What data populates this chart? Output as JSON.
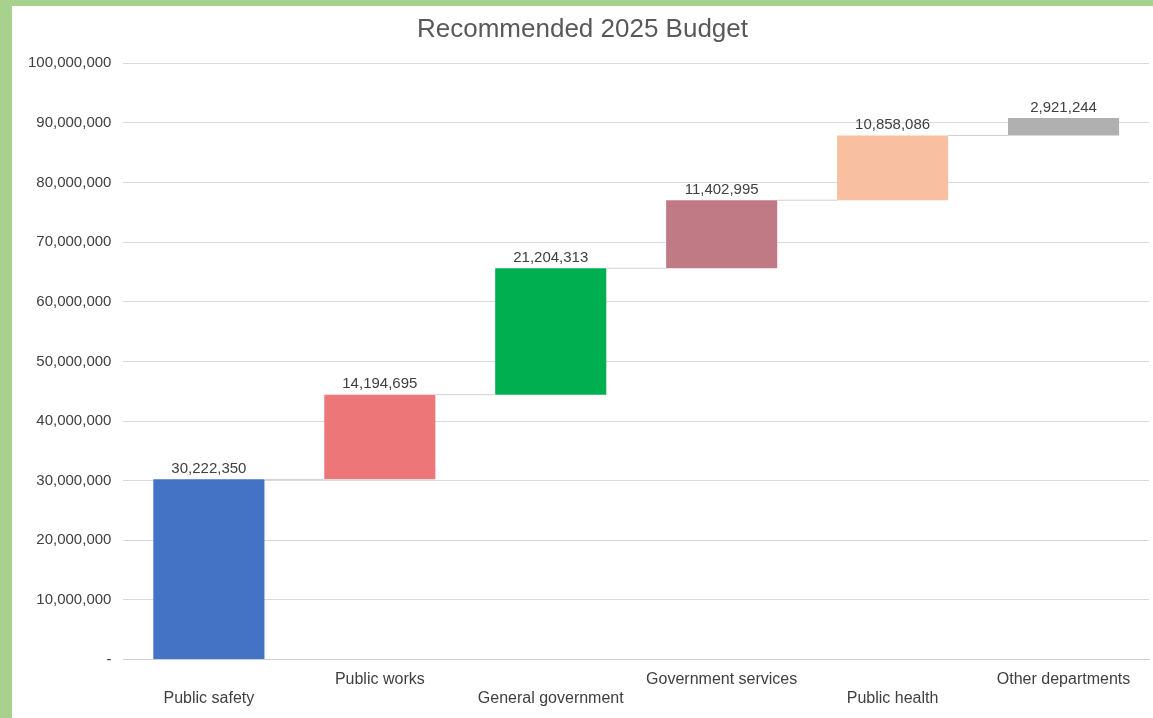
{
  "chart_data": {
    "type": "bar",
    "title": "Recommended 2025 Budget",
    "categories": [
      "Public safety",
      "Public works",
      "General government",
      "Government services",
      "Public health",
      "Other departments"
    ],
    "values": [
      30222350,
      14194695,
      21204313,
      11402995,
      10858086,
      2921244
    ],
    "base": [
      0,
      30222350,
      44417045,
      65621358,
      77024353,
      87882439
    ],
    "colors": [
      "#4472c4",
      "#ed7679",
      "#00b050",
      "#c07a86",
      "#f8c0a0",
      "#b0b0b0"
    ],
    "ylim": [
      0,
      100000000
    ],
    "yticks": [
      {
        "value": 0,
        "label": "-"
      },
      {
        "value": 10000000,
        "label": "10,000,000"
      },
      {
        "value": 20000000,
        "label": "20,000,000"
      },
      {
        "value": 30000000,
        "label": "30,000,000"
      },
      {
        "value": 40000000,
        "label": "40,000,000"
      },
      {
        "value": 50000000,
        "label": "50,000,000"
      },
      {
        "value": 60000000,
        "label": "60,000,000"
      },
      {
        "value": 70000000,
        "label": "70,000,000"
      },
      {
        "value": 80000000,
        "label": "80,000,000"
      },
      {
        "value": 90000000,
        "label": "90,000,000"
      },
      {
        "value": 100000000,
        "label": "100,000,000"
      }
    ],
    "value_labels": [
      "30,222,350",
      "14,194,695",
      "21,204,313",
      "11,402,995",
      "10,858,086",
      "2,921,244"
    ],
    "grid": "y",
    "legend": false
  }
}
